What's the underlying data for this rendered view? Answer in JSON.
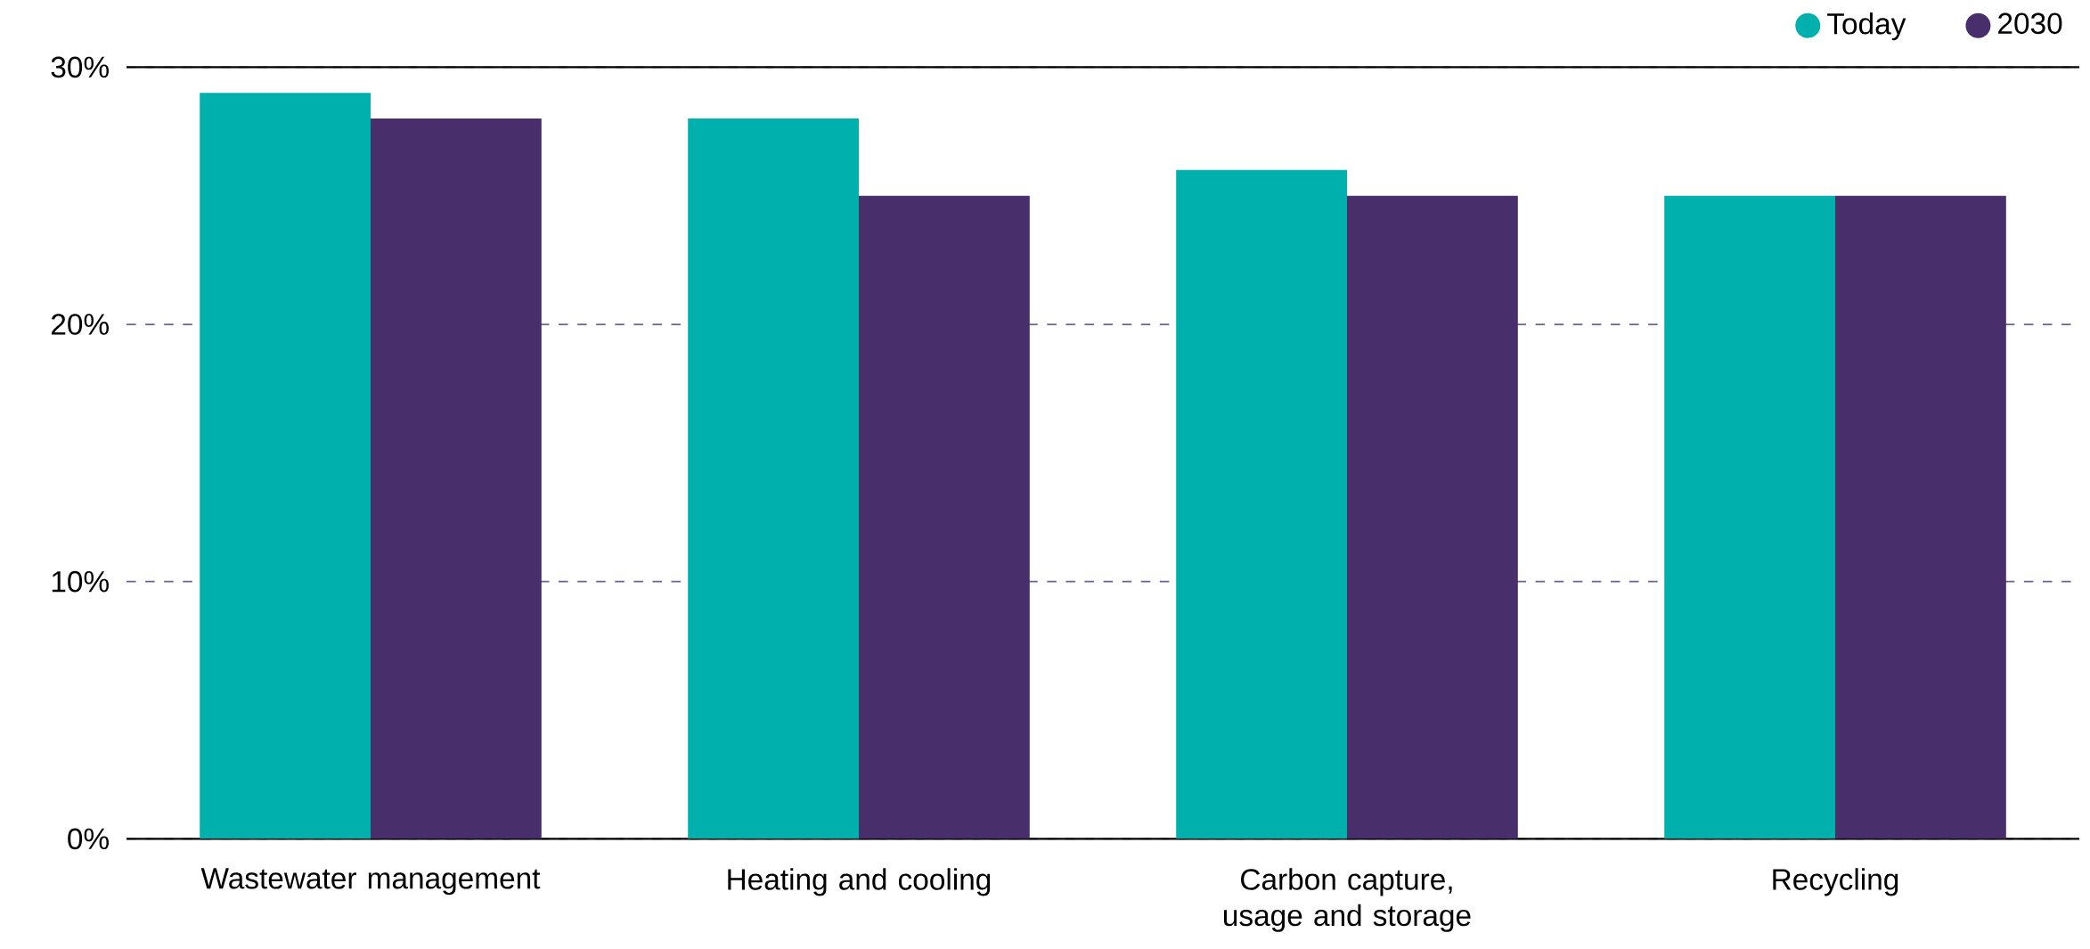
{
  "chart_data": {
    "type": "bar",
    "categories": [
      "Wastewater management",
      "Heating and cooling",
      "Carbon capture, usage and storage",
      "Recycling"
    ],
    "series": [
      {
        "name": "Today",
        "color": "#00b0ac",
        "values": [
          29,
          28,
          26,
          25
        ]
      },
      {
        "name": "2030",
        "color": "#482f6b",
        "values": [
          28,
          25,
          25,
          25
        ]
      }
    ],
    "ylim": [
      0,
      30
    ],
    "yticks": [
      {
        "value": 0,
        "label": "0%"
      },
      {
        "value": 10,
        "label": "10%"
      },
      {
        "value": 20,
        "label": "20%"
      },
      {
        "value": 30,
        "label": "30%"
      }
    ],
    "grid": "y",
    "legend": "top right"
  }
}
